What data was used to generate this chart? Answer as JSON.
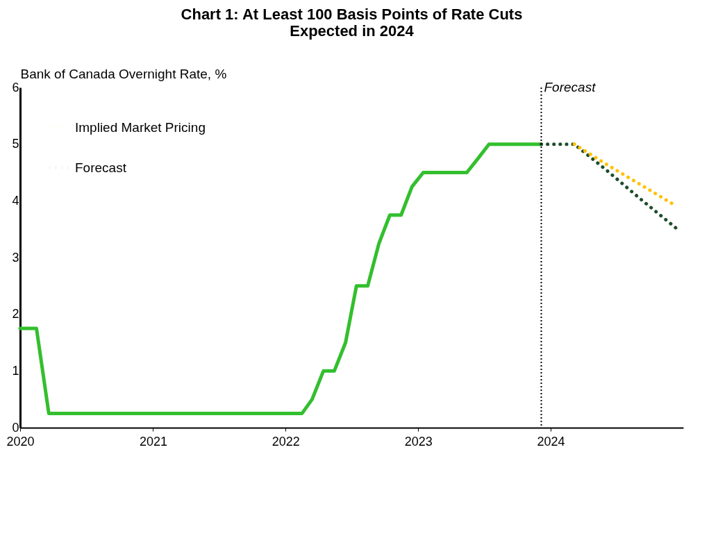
{
  "chart_data": {
    "type": "line",
    "title": "Chart 1: At Least 100 Basis Points of Rate Cuts\nExpected in 2024",
    "ylabel": "Bank of Canada Overnight Rate, %",
    "xlim": [
      "2020-01-01",
      "2024-12-31"
    ],
    "ylim": [
      0,
      6
    ],
    "yticks": [
      0,
      1,
      2,
      3,
      4,
      5,
      6
    ],
    "xticks": [
      {
        "value": "2020-01-01",
        "label": "2020"
      },
      {
        "value": "2021-01-01",
        "label": "2021"
      },
      {
        "value": "2022-01-01",
        "label": "2022"
      },
      {
        "value": "2023-01-01",
        "label": "2023"
      },
      {
        "value": "2024-01-01",
        "label": "2024"
      }
    ],
    "grid": false,
    "legend": "top left",
    "marker": "none",
    "ref_lines": [
      {
        "axis": "x",
        "value": "2023-12-06",
        "label": "Forecast",
        "line_style": "dotted",
        "color": "#000000"
      }
    ],
    "series": [
      {
        "color": "#33bf2e",
        "line_style": "solid",
        "x": [
          "2020-01-01",
          "2020-02-15",
          "2020-03-20",
          "2022-02-15",
          "2022-03-15",
          "2022-04-15",
          "2022-05-15",
          "2022-06-15",
          "2022-07-15",
          "2022-08-15",
          "2022-09-15",
          "2022-10-15",
          "2022-11-15",
          "2022-12-15",
          "2023-01-15",
          "2023-05-15",
          "2023-06-15",
          "2023-07-15",
          "2023-12-06"
        ],
        "values": [
          1.75,
          1.75,
          0.25,
          0.25,
          0.5,
          1.0,
          1.0,
          1.5,
          2.5,
          2.5,
          3.25,
          3.75,
          3.75,
          4.25,
          4.5,
          4.5,
          4.75,
          5.0,
          5.0
        ]
      },
      {
        "name": "Implied Market Pricing",
        "color": "#ffc000",
        "line_style": "dotted",
        "x": [
          "2024-03-06",
          "2024-06-01",
          "2024-09-01",
          "2024-12-01"
        ],
        "values": [
          5.0,
          4.65,
          4.3,
          3.95
        ]
      },
      {
        "name": "Forecast",
        "color": "#1e4d2b",
        "line_style": "dotted",
        "x": [
          "2023-12-06",
          "2024-03-06",
          "2024-06-01",
          "2024-09-01",
          "2024-12-15"
        ],
        "values": [
          5.0,
          5.0,
          4.55,
          4.05,
          3.5
        ]
      }
    ]
  }
}
